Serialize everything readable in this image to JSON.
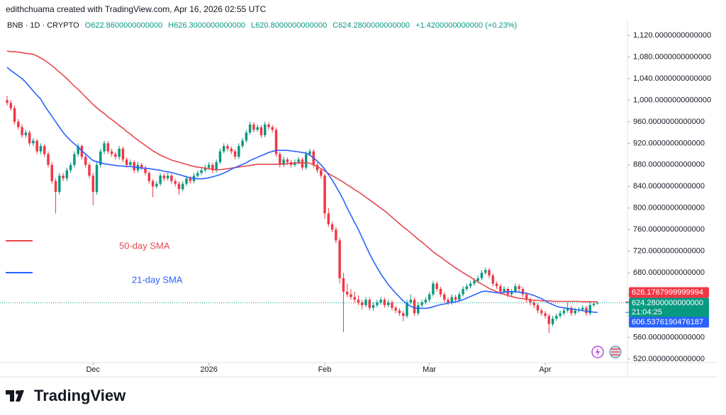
{
  "attribution": "edithchuama created with TradingView.com, Apr 16, 2026 02:55 UTC",
  "logo": "TradingView",
  "chart_data": {
    "type": "candlestick",
    "symbol": "BNB · 1D · CRYPTO",
    "ohlc_labels": [
      "O622.8600000000000",
      "H626.3000000000000",
      "L620.8000000000000",
      "C624.2800000000000",
      "+1.4200000000000 (+0.23%)"
    ],
    "up_color": "#089981",
    "down_color": "#f23645",
    "ohlc": [
      [
        1000,
        1008,
        990,
        995
      ],
      [
        995,
        1000,
        980,
        985
      ],
      [
        985,
        990,
        955,
        960
      ],
      [
        960,
        965,
        945,
        950
      ],
      [
        950,
        955,
        930,
        935
      ],
      [
        935,
        945,
        930,
        940
      ],
      [
        940,
        944,
        915,
        920
      ],
      [
        920,
        930,
        915,
        925
      ],
      [
        925,
        928,
        900,
        905
      ],
      [
        905,
        920,
        900,
        915
      ],
      [
        915,
        918,
        895,
        900
      ],
      [
        900,
        905,
        875,
        880
      ],
      [
        880,
        885,
        845,
        850
      ],
      [
        850,
        855,
        790,
        830
      ],
      [
        830,
        865,
        825,
        860
      ],
      [
        860,
        865,
        850,
        855
      ],
      [
        855,
        875,
        850,
        870
      ],
      [
        870,
        885,
        865,
        880
      ],
      [
        880,
        905,
        875,
        900
      ],
      [
        900,
        920,
        895,
        915
      ],
      [
        915,
        918,
        890,
        895
      ],
      [
        895,
        900,
        875,
        880
      ],
      [
        880,
        884,
        855,
        860
      ],
      [
        860,
        865,
        805,
        830
      ],
      [
        830,
        885,
        825,
        880
      ],
      [
        880,
        910,
        875,
        905
      ],
      [
        905,
        925,
        900,
        920
      ],
      [
        920,
        924,
        900,
        905
      ],
      [
        905,
        910,
        895,
        900
      ],
      [
        900,
        904,
        890,
        895
      ],
      [
        895,
        915,
        890,
        910
      ],
      [
        910,
        914,
        885,
        890
      ],
      [
        890,
        894,
        875,
        880
      ],
      [
        880,
        890,
        876,
        885
      ],
      [
        885,
        889,
        865,
        870
      ],
      [
        870,
        885,
        866,
        880
      ],
      [
        880,
        884,
        870,
        875
      ],
      [
        875,
        879,
        860,
        865
      ],
      [
        865,
        869,
        845,
        850
      ],
      [
        850,
        854,
        820,
        840
      ],
      [
        840,
        850,
        836,
        845
      ],
      [
        845,
        865,
        841,
        860
      ],
      [
        860,
        864,
        850,
        855
      ],
      [
        855,
        865,
        851,
        860
      ],
      [
        860,
        864,
        845,
        850
      ],
      [
        850,
        854,
        840,
        845
      ],
      [
        845,
        849,
        825,
        835
      ],
      [
        835,
        850,
        831,
        845
      ],
      [
        845,
        860,
        841,
        855
      ],
      [
        855,
        859,
        845,
        850
      ],
      [
        850,
        865,
        846,
        860
      ],
      [
        860,
        870,
        856,
        865
      ],
      [
        865,
        875,
        861,
        870
      ],
      [
        870,
        880,
        866,
        875
      ],
      [
        875,
        885,
        871,
        880
      ],
      [
        880,
        884,
        865,
        870
      ],
      [
        870,
        890,
        866,
        885
      ],
      [
        885,
        910,
        881,
        905
      ],
      [
        905,
        920,
        901,
        915
      ],
      [
        915,
        919,
        905,
        910
      ],
      [
        910,
        914,
        900,
        905
      ],
      [
        905,
        909,
        890,
        895
      ],
      [
        895,
        920,
        891,
        915
      ],
      [
        915,
        930,
        911,
        925
      ],
      [
        925,
        945,
        921,
        940
      ],
      [
        940,
        960,
        936,
        955
      ],
      [
        955,
        959,
        940,
        945
      ],
      [
        945,
        955,
        941,
        950
      ],
      [
        950,
        954,
        930,
        935
      ],
      [
        935,
        960,
        931,
        955
      ],
      [
        955,
        959,
        945,
        950
      ],
      [
        950,
        954,
        940,
        945
      ],
      [
        945,
        949,
        895,
        900
      ],
      [
        900,
        904,
        875,
        880
      ],
      [
        880,
        895,
        876,
        890
      ],
      [
        890,
        894,
        880,
        885
      ],
      [
        885,
        889,
        875,
        880
      ],
      [
        880,
        890,
        876,
        885
      ],
      [
        885,
        895,
        881,
        890
      ],
      [
        890,
        894,
        870,
        875
      ],
      [
        875,
        905,
        871,
        900
      ],
      [
        900,
        910,
        896,
        905
      ],
      [
        905,
        909,
        875,
        880
      ],
      [
        880,
        884,
        865,
        870
      ],
      [
        870,
        874,
        855,
        860
      ],
      [
        860,
        864,
        780,
        790
      ],
      [
        790,
        800,
        765,
        770
      ],
      [
        770,
        775,
        755,
        760
      ],
      [
        760,
        765,
        735,
        740
      ],
      [
        740,
        745,
        660,
        670
      ],
      [
        670,
        680,
        570,
        645
      ],
      [
        645,
        660,
        635,
        640
      ],
      [
        640,
        650,
        630,
        635
      ],
      [
        635,
        645,
        625,
        630
      ],
      [
        630,
        638,
        620,
        625
      ],
      [
        625,
        630,
        612,
        620
      ],
      [
        620,
        635,
        616,
        630
      ],
      [
        630,
        634,
        610,
        615
      ],
      [
        615,
        625,
        610,
        620
      ],
      [
        620,
        630,
        616,
        625
      ],
      [
        625,
        635,
        621,
        630
      ],
      [
        630,
        634,
        615,
        620
      ],
      [
        620,
        630,
        616,
        625
      ],
      [
        625,
        629,
        610,
        615
      ],
      [
        615,
        619,
        605,
        610
      ],
      [
        610,
        614,
        600,
        605
      ],
      [
        605,
        609,
        590,
        600
      ],
      [
        600,
        630,
        596,
        625
      ],
      [
        625,
        640,
        621,
        630
      ],
      [
        630,
        634,
        600,
        605
      ],
      [
        605,
        625,
        601,
        620
      ],
      [
        620,
        630,
        616,
        625
      ],
      [
        625,
        635,
        621,
        630
      ],
      [
        630,
        645,
        626,
        640
      ],
      [
        640,
        665,
        636,
        660
      ],
      [
        660,
        664,
        645,
        650
      ],
      [
        650,
        654,
        635,
        640
      ],
      [
        640,
        644,
        625,
        630
      ],
      [
        630,
        634,
        620,
        625
      ],
      [
        625,
        640,
        621,
        635
      ],
      [
        635,
        639,
        625,
        630
      ],
      [
        630,
        645,
        626,
        640
      ],
      [
        640,
        655,
        636,
        650
      ],
      [
        650,
        660,
        646,
        655
      ],
      [
        655,
        665,
        651,
        660
      ],
      [
        660,
        670,
        656,
        665
      ],
      [
        665,
        675,
        661,
        670
      ],
      [
        670,
        685,
        666,
        680
      ],
      [
        680,
        690,
        676,
        685
      ],
      [
        685,
        689,
        670,
        675
      ],
      [
        675,
        679,
        655,
        660
      ],
      [
        660,
        664,
        650,
        655
      ],
      [
        655,
        659,
        640,
        645
      ],
      [
        645,
        655,
        641,
        650
      ],
      [
        650,
        654,
        635,
        640
      ],
      [
        640,
        650,
        636,
        645
      ],
      [
        645,
        660,
        641,
        655
      ],
      [
        655,
        659,
        645,
        650
      ],
      [
        650,
        654,
        635,
        640
      ],
      [
        640,
        644,
        625,
        630
      ],
      [
        630,
        634,
        620,
        625
      ],
      [
        625,
        629,
        615,
        620
      ],
      [
        620,
        624,
        605,
        610
      ],
      [
        610,
        614,
        600,
        605
      ],
      [
        605,
        609,
        595,
        600
      ],
      [
        600,
        604,
        568,
        585
      ],
      [
        585,
        600,
        581,
        595
      ],
      [
        595,
        605,
        591,
        600
      ],
      [
        600,
        610,
        596,
        605
      ],
      [
        605,
        615,
        601,
        610
      ],
      [
        610,
        625,
        606,
        615
      ],
      [
        615,
        619,
        600,
        605
      ],
      [
        605,
        615,
        601,
        610
      ],
      [
        610,
        616,
        606,
        612
      ],
      [
        612,
        620,
        608,
        615
      ],
      [
        615,
        619,
        600,
        605
      ],
      [
        605,
        625,
        601,
        620
      ],
      [
        620,
        626,
        617,
        622.86
      ],
      [
        622.86,
        626.3,
        620.8,
        624.28
      ]
    ],
    "series": [
      {
        "name": "50-day SMA",
        "color": "#e5484f",
        "values": [
          1091,
          1090,
          1090,
          1089,
          1088,
          1087,
          1086,
          1085,
          1082,
          1078,
          1074,
          1069,
          1064,
          1058,
          1052,
          1046,
          1040,
          1033,
          1026,
          1020,
          1013,
          1006,
          999,
          992,
          986,
          980,
          975,
          969,
          964,
          959,
          953,
          948,
          942,
          937,
          931,
          926,
          921,
          916,
          911,
          906,
          902,
          898,
          895,
          892,
          889,
          887,
          885,
          883,
          881,
          879,
          877,
          876,
          875,
          874,
          873,
          872,
          871,
          871,
          872,
          873,
          874,
          875,
          876,
          877,
          878,
          879,
          880,
          881,
          881,
          881,
          881,
          881,
          881,
          881,
          882,
          882,
          883,
          883,
          884,
          884,
          884,
          883,
          880,
          877,
          873,
          869,
          864,
          860,
          856,
          852,
          848,
          843,
          839,
          834,
          830,
          825,
          820,
          815,
          810,
          805,
          800,
          795,
          789,
          783,
          777,
          771,
          765,
          760,
          754,
          748,
          742,
          737,
          731,
          725,
          719,
          714,
          709,
          704,
          699,
          694,
          689,
          685,
          680,
          676,
          672,
          667,
          663,
          659,
          655,
          651,
          648,
          645,
          642,
          640,
          638,
          636,
          634,
          633,
          632,
          631,
          630,
          629,
          629,
          628,
          628,
          628,
          627,
          627,
          627,
          627,
          627,
          627,
          627,
          627,
          626.5,
          626.5,
          626.3,
          626.2,
          626.1767999999994
        ]
      },
      {
        "name": "21-day SMA",
        "color": "#2962ff",
        "values": [
          1061,
          1055,
          1050,
          1045,
          1040,
          1033,
          1025,
          1017,
          1009,
          1002,
          990,
          980,
          970,
          960,
          950,
          940,
          932,
          925,
          919,
          913,
          906,
          900,
          894,
          888,
          886,
          884,
          882,
          881,
          880,
          879,
          878,
          878,
          877,
          877,
          876,
          875,
          874,
          874,
          873,
          872,
          871,
          870,
          868,
          867,
          866,
          864,
          862,
          860,
          858,
          856,
          855,
          854,
          854,
          855,
          856,
          858,
          860,
          862,
          865,
          868,
          872,
          875,
          878,
          881,
          884,
          888,
          891,
          894,
          897,
          900,
          903,
          905,
          907,
          907,
          907,
          907,
          906,
          905,
          904,
          903,
          902,
          898,
          893,
          887,
          880,
          872,
          862,
          852,
          840,
          828,
          815,
          800,
          787,
          773,
          760,
          745,
          730,
          715,
          702,
          690,
          678,
          668,
          658,
          650,
          642,
          635,
          628,
          622,
          618,
          615,
          614,
          614,
          614,
          615,
          617,
          619,
          621,
          622,
          624,
          625,
          626,
          628,
          630,
          633,
          636,
          639,
          642,
          645,
          646,
          645,
          644,
          643,
          643,
          644,
          645,
          645,
          645,
          644,
          643,
          642,
          640,
          638,
          635,
          632,
          628,
          624,
          621,
          618,
          616,
          615,
          614,
          613,
          612,
          611,
          610,
          609,
          608,
          607,
          606.5376190476187
        ]
      }
    ],
    "ylim": [
      513.5,
      1148.9
    ],
    "yticks": [
      {
        "value": 520,
        "label": "520.0000000000000"
      },
      {
        "value": 560,
        "label": "560.0000000000000"
      },
      {
        "value": 600,
        "label": "600.0000000000000"
      },
      {
        "value": 640,
        "label": "640.0000000000000"
      },
      {
        "value": 680,
        "label": "680.0000000000000"
      },
      {
        "value": 720,
        "label": "720.0000000000000"
      },
      {
        "value": 760,
        "label": "760.0000000000000"
      },
      {
        "value": 800,
        "label": "800.0000000000000"
      },
      {
        "value": 840,
        "label": "840.0000000000000"
      },
      {
        "value": 880,
        "label": "880.0000000000000"
      },
      {
        "value": 920,
        "label": "920.0000000000000"
      },
      {
        "value": 960,
        "label": "960.0000000000000"
      },
      {
        "value": 1000,
        "label": "1,000.0000000000000"
      },
      {
        "value": 1040,
        "label": "1,040.0000000000000"
      },
      {
        "value": 1080,
        "label": "1,080.0000000000000"
      },
      {
        "value": 1120,
        "label": "1,120.0000000000000"
      }
    ],
    "xlim": [
      -1.9,
      166
    ],
    "xticks": [
      {
        "value": 23,
        "label": "Dec"
      },
      {
        "value": 54,
        "label": "2026"
      },
      {
        "value": 85,
        "label": "Feb"
      },
      {
        "value": 113,
        "label": "Mar"
      },
      {
        "value": 144,
        "label": "Apr"
      }
    ],
    "price_tags": [
      {
        "value": 626.1767999999994,
        "label": "626.1767999999994",
        "color": "#f23645"
      },
      {
        "value": 624.28,
        "label": "624.2800000000000",
        "color": "#089981"
      },
      {
        "value": 606.5376190476187,
        "label": "606.5376190476187",
        "color": "#2962ff"
      }
    ],
    "countdown": "21:04:25"
  }
}
